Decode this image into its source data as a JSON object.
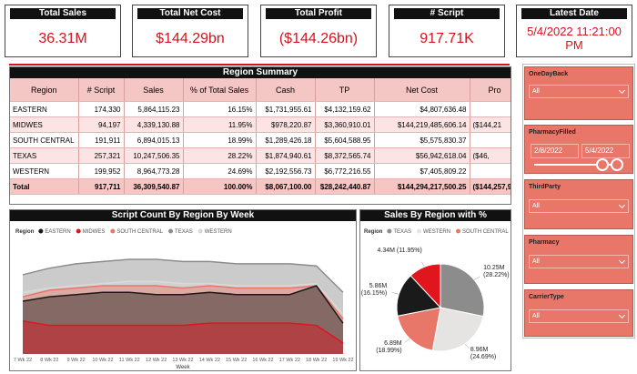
{
  "kpis": [
    {
      "title": "Total Sales",
      "value": "36.31M"
    },
    {
      "title": "Total Net Cost",
      "value": "$144.29bn"
    },
    {
      "title": "Total Profit",
      "value": "($144.26bn)"
    },
    {
      "title": "# Script",
      "value": "917.71K"
    },
    {
      "title": "Latest Date",
      "value": "5/4/2022 11:21:00 PM"
    }
  ],
  "table": {
    "title": "Region Summary",
    "columns": [
      "Region",
      "# Script",
      "Sales",
      "% of Total Sales",
      "Cash",
      "TP",
      "Net Cost",
      "Pro"
    ],
    "rows": [
      [
        "EASTERN",
        "174,330",
        "5,864,115.23",
        "16.15%",
        "$1,731,955.61",
        "$4,132,159.62",
        "$4,807,636.48"
      ],
      [
        "MIDWES",
        "94,197",
        "4,339,130.88",
        "11.95%",
        "$978,220.87",
        "$3,360,910.01",
        "$144,219,485,606.14",
        "($144,21"
      ],
      [
        "SOUTH CENTRAL",
        "191,911",
        "6,894,015.13",
        "18.99%",
        "$1,289,426.18",
        "$5,604,588.95",
        "$5,575,830.37"
      ],
      [
        "TEXAS",
        "257,321",
        "10,247,506.35",
        "28.22%",
        "$1,874,940.61",
        "$8,372,565.74",
        "$56,942,618.04",
        "($46,"
      ],
      [
        "WESTERN",
        "199,952",
        "8,964,773.28",
        "24.69%",
        "$2,192,556.73",
        "$6,772,216.55",
        "$7,405,809.22"
      ]
    ],
    "total": [
      "Total",
      "917,711",
      "36,309,540.87",
      "100.00%",
      "$8,067,100.00",
      "$28,242,440.87",
      "$144,294,217,500.25",
      "($144,257,9"
    ]
  },
  "chart_data": [
    {
      "type": "area",
      "title": "Script Count By Region By Week",
      "legend_title": "Region",
      "x_label": "Week",
      "categories": [
        "7 Wk 22",
        "8 Wk 22",
        "9 Wk 22",
        "10 Wk 22",
        "11 Wk 22",
        "12 Wk 22",
        "13 Wk 22",
        "14 Wk 22",
        "15 Wk 22",
        "16 Wk 22",
        "17 Wk 22",
        "18 Wk 22",
        "19 Wk 22"
      ],
      "series": [
        {
          "name": "EASTERN",
          "color": "#1a1a1a",
          "values": [
            12000,
            13000,
            13500,
            14000,
            14000,
            13500,
            13500,
            14000,
            13500,
            13500,
            13500,
            15500,
            7000
          ]
        },
        {
          "name": "MIDWES",
          "color": "#e0151e",
          "values": [
            7500,
            6500,
            6500,
            6500,
            6500,
            6500,
            6500,
            7000,
            7000,
            7000,
            7000,
            6500,
            2500
          ]
        },
        {
          "name": "SOUTH CENTRAL",
          "color": "#e8776a",
          "values": [
            13000,
            14500,
            15000,
            15500,
            15500,
            15500,
            15000,
            15500,
            15000,
            15000,
            15000,
            15500,
            8000
          ]
        },
        {
          "name": "TEXAS",
          "color": "#8c8c8c",
          "values": [
            18000,
            19500,
            20500,
            21000,
            21500,
            21500,
            21000,
            21000,
            20500,
            20500,
            20500,
            20000,
            14000
          ]
        },
        {
          "name": "WESTERN",
          "color": "#d9d9d9",
          "values": [
            14000,
            15000,
            15500,
            16000,
            16500,
            16500,
            16000,
            16000,
            15500,
            15500,
            15500,
            16000,
            9000
          ]
        }
      ]
    },
    {
      "type": "pie",
      "title": "Sales By Region with %",
      "legend_title": "Region",
      "categories": [
        "TEXAS",
        "WESTERN",
        "SOUTH CENTRAL",
        "EASTERN",
        "MIDWES"
      ],
      "values": [
        10247506.35,
        8964773.28,
        6894015.13,
        5864115.23,
        4339130.88
      ],
      "value_labels": [
        "10.25M (28.22%)",
        "8.96M (24.69%)",
        "6.89M (18.99%)",
        "5.86M (16.15%)",
        "4.34M (11.95%)"
      ],
      "colors": [
        "#8c8c8c",
        "#e6e3e3",
        "#e8776a",
        "#1a1a1a",
        "#e0151e"
      ]
    }
  ],
  "slicers": [
    {
      "title": "OneDayBack",
      "value": "All"
    },
    {
      "title": "PharmacyFilled",
      "from": "2/8/2022",
      "to": "5/4/2022"
    },
    {
      "title": "ThirdParty",
      "value": "All"
    },
    {
      "title": "Pharmacy",
      "value": "All"
    },
    {
      "title": "CarrierType",
      "value": "All"
    }
  ]
}
